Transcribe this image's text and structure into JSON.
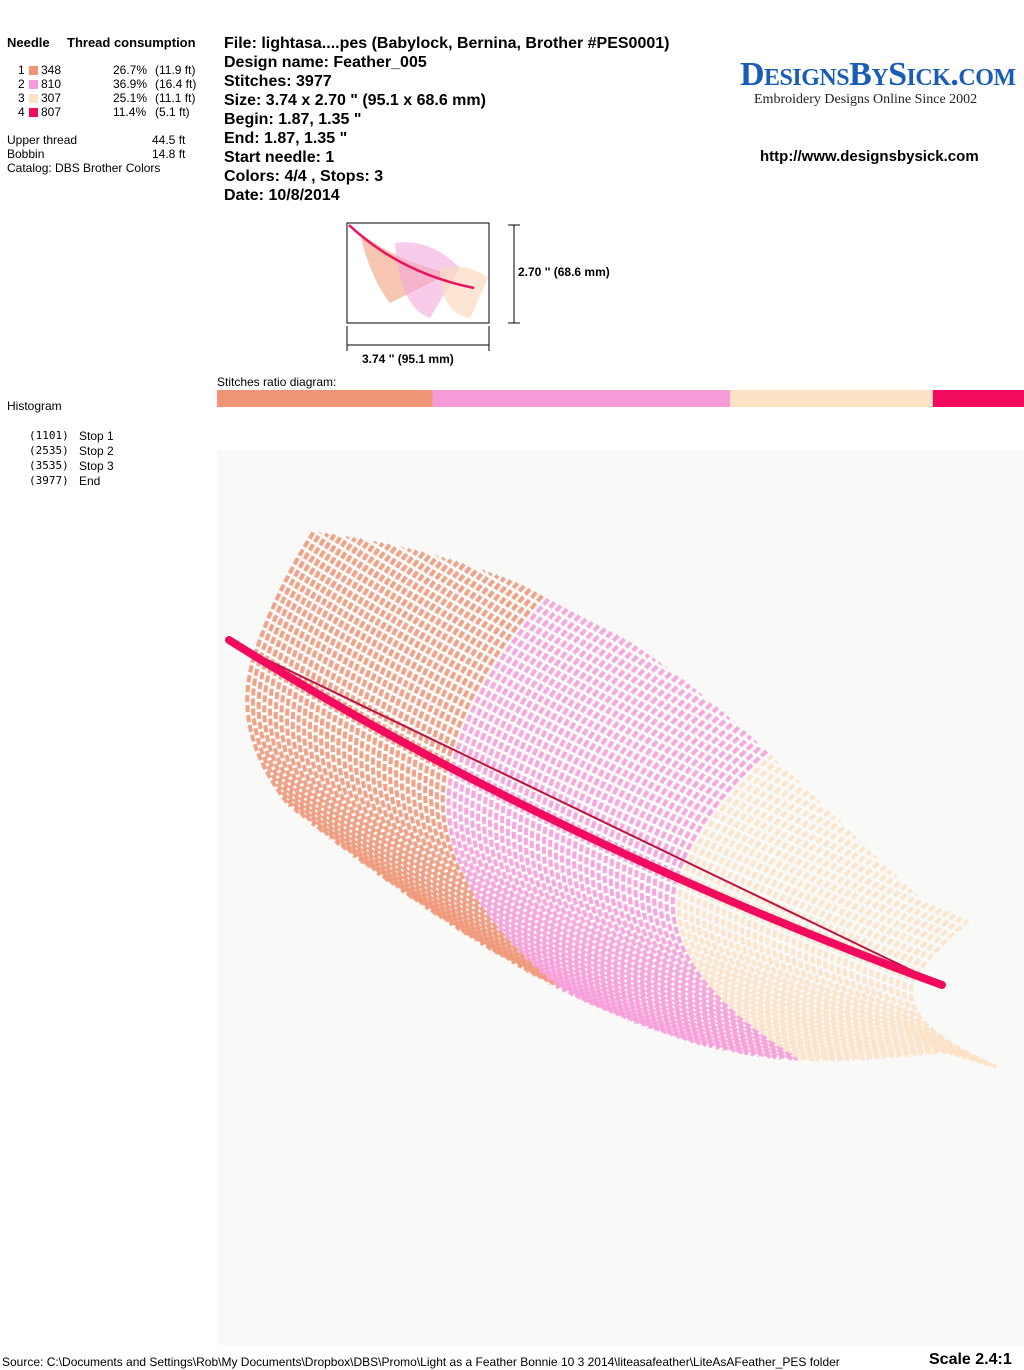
{
  "threads": {
    "heading_needle": "Needle",
    "heading_consumption": "Thread consumption",
    "rows": [
      {
        "needle": "1",
        "code": "348",
        "color": "#ef9474",
        "percent": {
          "value": 26.7,
          "label": "26.7%"
        },
        "length": "(11.9 ft)"
      },
      {
        "needle": "2",
        "code": "810",
        "color": "#f79ad8",
        "percent": {
          "value": 36.9,
          "label": "36.9%"
        },
        "length": "(16.4 ft)"
      },
      {
        "needle": "3",
        "code": "307",
        "color": "#fde2c6",
        "percent": {
          "value": 25.1,
          "label": "25.1%"
        },
        "length": "(11.1 ft)"
      },
      {
        "needle": "4",
        "code": "807",
        "color": "#f20a5e",
        "percent": {
          "value": 11.4,
          "label": "11.4%"
        },
        "length": "(5.1 ft)"
      }
    ],
    "upper_thread": {
      "label": "Upper thread",
      "value": "44.5 ft"
    },
    "bobbin": {
      "label": "Bobbin",
      "value": "14.8 ft"
    },
    "catalog": "Catalog: DBS Brother Colors"
  },
  "header": {
    "lines": [
      "File: lightasa....pes  (Babylock, Bernina, Brother #PES0001)",
      "Design name: Feather_005",
      "Stitches: 3977",
      "Size: 3.74 x 2.70 \" (95.1 x 68.6 mm)",
      "Begin: 1.87, 1.35 \"",
      "End: 1.87, 1.35 \"",
      "Start needle: 1",
      "Colors: 4/4 , Stops: 3",
      "Date: 10/8/2014"
    ]
  },
  "logo": {
    "title": "DesignsBySick.com",
    "tagline": "Embroidery Designs Online Since 2002",
    "url": "http://www.designsbysick.com"
  },
  "thumbnail": {
    "height_label": "2.70 '' (68.6 mm)",
    "width_label": "3.74 '' (95.1 mm)"
  },
  "ratio_diagram": {
    "label": "Stitches ratio diagram:"
  },
  "histogram": {
    "title": "Histogram",
    "stops": [
      {
        "count": "(1101)",
        "label": "Stop 1"
      },
      {
        "count": "(2535)",
        "label": "Stop 2"
      },
      {
        "count": "(3535)",
        "label": "Stop 3"
      },
      {
        "count": "(3977)",
        "label": "End"
      }
    ]
  },
  "footer": {
    "source": "Source: C:\\Documents and Settings\\Rob\\My Documents\\Dropbox\\DBS\\Promo\\Light as a Feather  Bonnie 10 3 2014\\liteasafeather\\LiteAsAFeather_PES folder",
    "scale": "Scale 2.4:1"
  }
}
